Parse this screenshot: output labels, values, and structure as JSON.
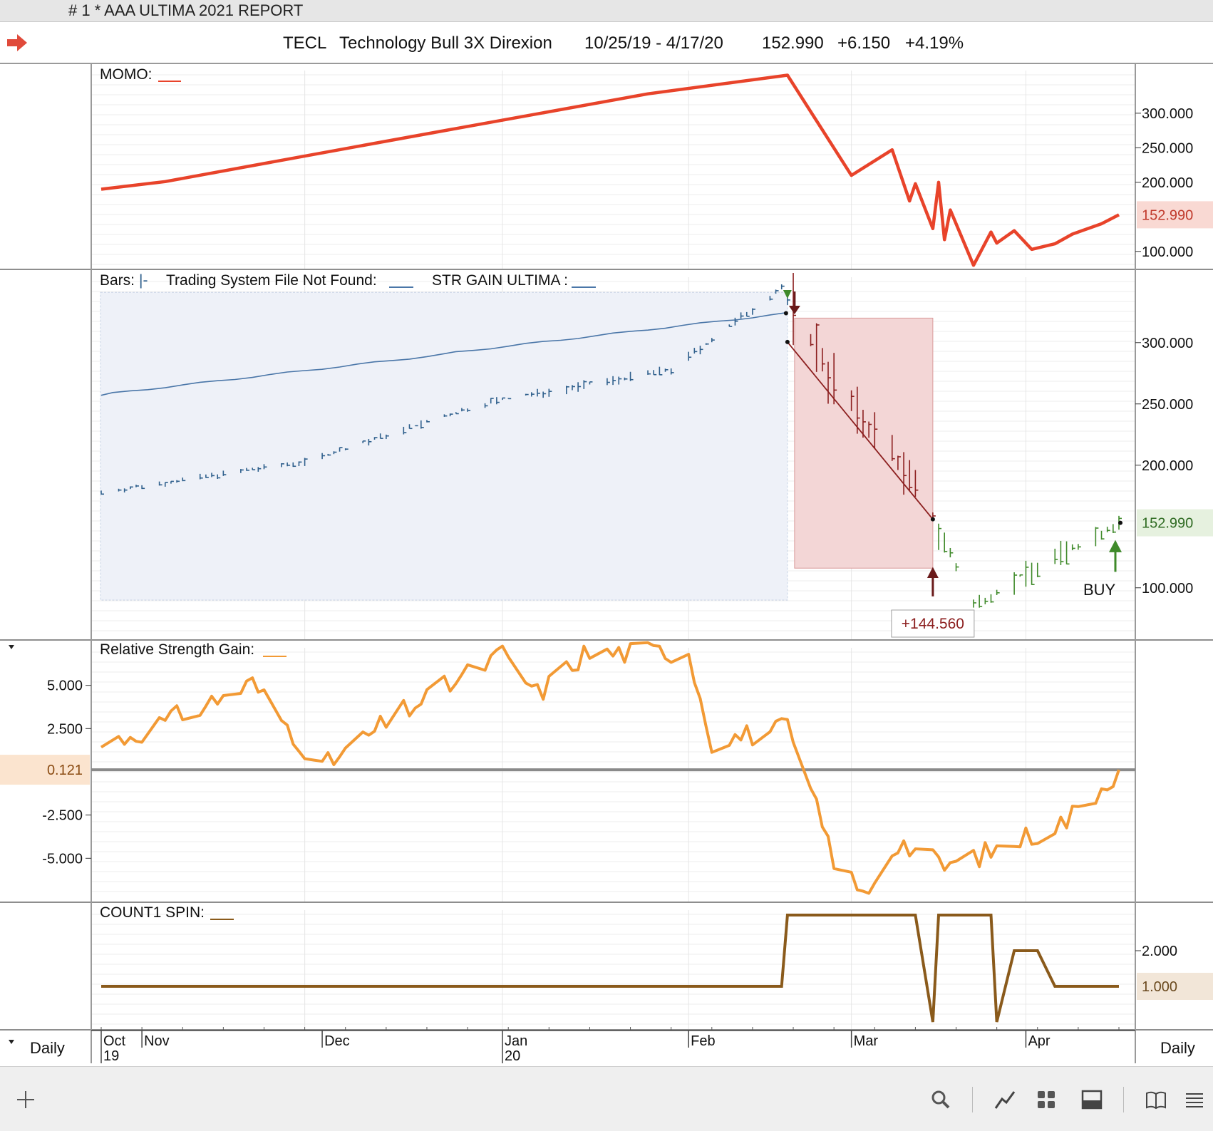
{
  "window": {
    "title": "#  1 * AAA ULTIMA  2021 REPORT"
  },
  "header": {
    "symbol": "TECL",
    "name": "Technology Bull 3X Direxion",
    "date_range": "10/25/19 - 4/17/20",
    "last": "152.990",
    "change": "+6.150",
    "change_pct": "+4.19%"
  },
  "panels": {
    "momo_label": "MOMO:",
    "bars_label": "Bars:",
    "bars_glyph": "|-",
    "trading_system_label": "Trading System File Not Found:",
    "str_gain_label": "STR GAIN ULTIMA :",
    "rsg_label": "Relative Strength Gain:",
    "count_label": "COUNT1 SPIN:"
  },
  "annotations": {
    "trade_gain": "+144.560",
    "buy_label": "BUY"
  },
  "period_left": "Daily",
  "period_right": "Daily",
  "colors": {
    "momo": "#e8432a",
    "rsg": "#f29a35",
    "count": "#8a5a1b",
    "bars_blue": "#2e5f8c",
    "bars_red": "#8c1f1f",
    "bars_green": "#3f8a2a",
    "trendline": "#4a76a8",
    "short_box": "#f3d6d6",
    "long_box": "#eef1f8"
  },
  "icons": [
    "add-icon",
    "search-icon",
    "line-chart-icon",
    "grid-icon",
    "panel-icon",
    "book-icon",
    "menu-icon"
  ],
  "chart_data": [
    {
      "type": "line",
      "title": "MOMO",
      "series": [
        {
          "name": "MOMO",
          "x": [
            "2019-10-25",
            "2019-11-05",
            "2019-12-12",
            "2020-01-27",
            "2020-02-20",
            "2020-03-02",
            "2020-03-09",
            "2020-03-12",
            "2020-03-13",
            "2020-03-16",
            "2020-03-17",
            "2020-03-18",
            "2020-03-19",
            "2020-03-23",
            "2020-03-26",
            "2020-03-27",
            "2020-03-30",
            "2020-04-02",
            "2020-04-06",
            "2020-04-09",
            "2020-04-14",
            "2020-04-17"
          ],
          "y": [
            190,
            201,
            258,
            328,
            355,
            210,
            247,
            173,
            198,
            133,
            200,
            117,
            160,
            80,
            128,
            112,
            130,
            103,
            111,
            125,
            140,
            152.99
          ]
        }
      ],
      "y_ticks": [
        "300.000",
        "250.000",
        "200.000",
        "100.000"
      ],
      "last_value": "152.990",
      "ylim": [
        75,
        370
      ]
    },
    {
      "type": "ohlc",
      "title": "Bars",
      "x_range": [
        "2019-10-25",
        "2020-04-17"
      ],
      "approx_closes": {
        "x": [
          "2019-10-25",
          "2019-11-29",
          "2019-12-31",
          "2020-01-31",
          "2020-02-19",
          "2020-03-02",
          "2020-03-09",
          "2020-03-16",
          "2020-03-23",
          "2020-04-01",
          "2020-04-17"
        ],
        "y": [
          178,
          203,
          252,
          278,
          345,
          248,
          213,
          158,
          86,
          112,
          152.99
        ]
      },
      "trend_line_str_gain_ultima": {
        "start": 257,
        "end": 324
      },
      "short_trade": {
        "entry": "2020-02-20",
        "exit": "2020-03-16",
        "entry_price": 300.5,
        "exit_price": 155.9,
        "gain": "+144.560"
      },
      "signals": [
        {
          "type": "sell",
          "date": "2020-02-20"
        },
        {
          "type": "buy",
          "date": "2020-03-16"
        },
        {
          "type": "buy",
          "date": "2020-04-17",
          "label": "BUY"
        }
      ],
      "y_ticks": [
        "300.000",
        "250.000",
        "200.000",
        "100.000"
      ],
      "last_value": "152.990",
      "ylim": [
        58,
        358
      ]
    },
    {
      "type": "line",
      "title": "Relative Strength Gain",
      "series": [
        {
          "name": "Relative Strength Gain",
          "x": [
            "2019-10-25",
            "2019-11-06",
            "2019-11-20",
            "2019-12-02",
            "2019-12-16",
            "2020-01-02",
            "2020-01-08",
            "2020-01-16",
            "2020-02-03",
            "2020-02-07",
            "2020-02-20",
            "2020-02-28",
            "2020-03-04",
            "2020-03-10",
            "2020-03-18",
            "2020-03-27",
            "2020-04-08",
            "2020-04-17"
          ],
          "y": [
            1.5,
            3.0,
            5.1,
            0.2,
            3.5,
            6.8,
            4.5,
            6.8,
            7.0,
            1.8,
            2.5,
            -5.0,
            -7.2,
            -4.0,
            -5.5,
            -4.5,
            -2.8,
            0.121
          ]
        }
      ],
      "y_ticks": [
        "5.000",
        "2.500",
        "0.121",
        "-2.500",
        "-5.000"
      ],
      "last_value": "0.121",
      "ylim": [
        -7.5,
        7.5
      ]
    },
    {
      "type": "line",
      "title": "COUNT1 SPIN",
      "series": [
        {
          "name": "COUNT1 SPIN",
          "x": [
            "2019-10-25",
            "2020-02-19",
            "2020-02-20",
            "2020-03-13",
            "2020-03-16",
            "2020-03-17",
            "2020-03-26",
            "2020-03-27",
            "2020-03-30",
            "2020-04-03",
            "2020-04-06",
            "2020-04-17"
          ],
          "y": [
            1,
            1,
            3,
            3,
            0,
            3,
            3,
            0,
            2,
            2,
            1,
            1
          ]
        }
      ],
      "y_ticks": [
        "2.000",
        "1.000"
      ],
      "last_value": "1.000",
      "ylim": [
        -0.2,
        3.3
      ]
    }
  ],
  "x_axis": {
    "months": [
      {
        "label": "Oct",
        "year": "19"
      },
      {
        "label": "Nov",
        "year": ""
      },
      {
        "label": "Dec",
        "year": ""
      },
      {
        "label": "Jan",
        "year": "20"
      },
      {
        "label": "Feb",
        "year": ""
      },
      {
        "label": "Mar",
        "year": ""
      },
      {
        "label": "Apr",
        "year": ""
      }
    ]
  }
}
